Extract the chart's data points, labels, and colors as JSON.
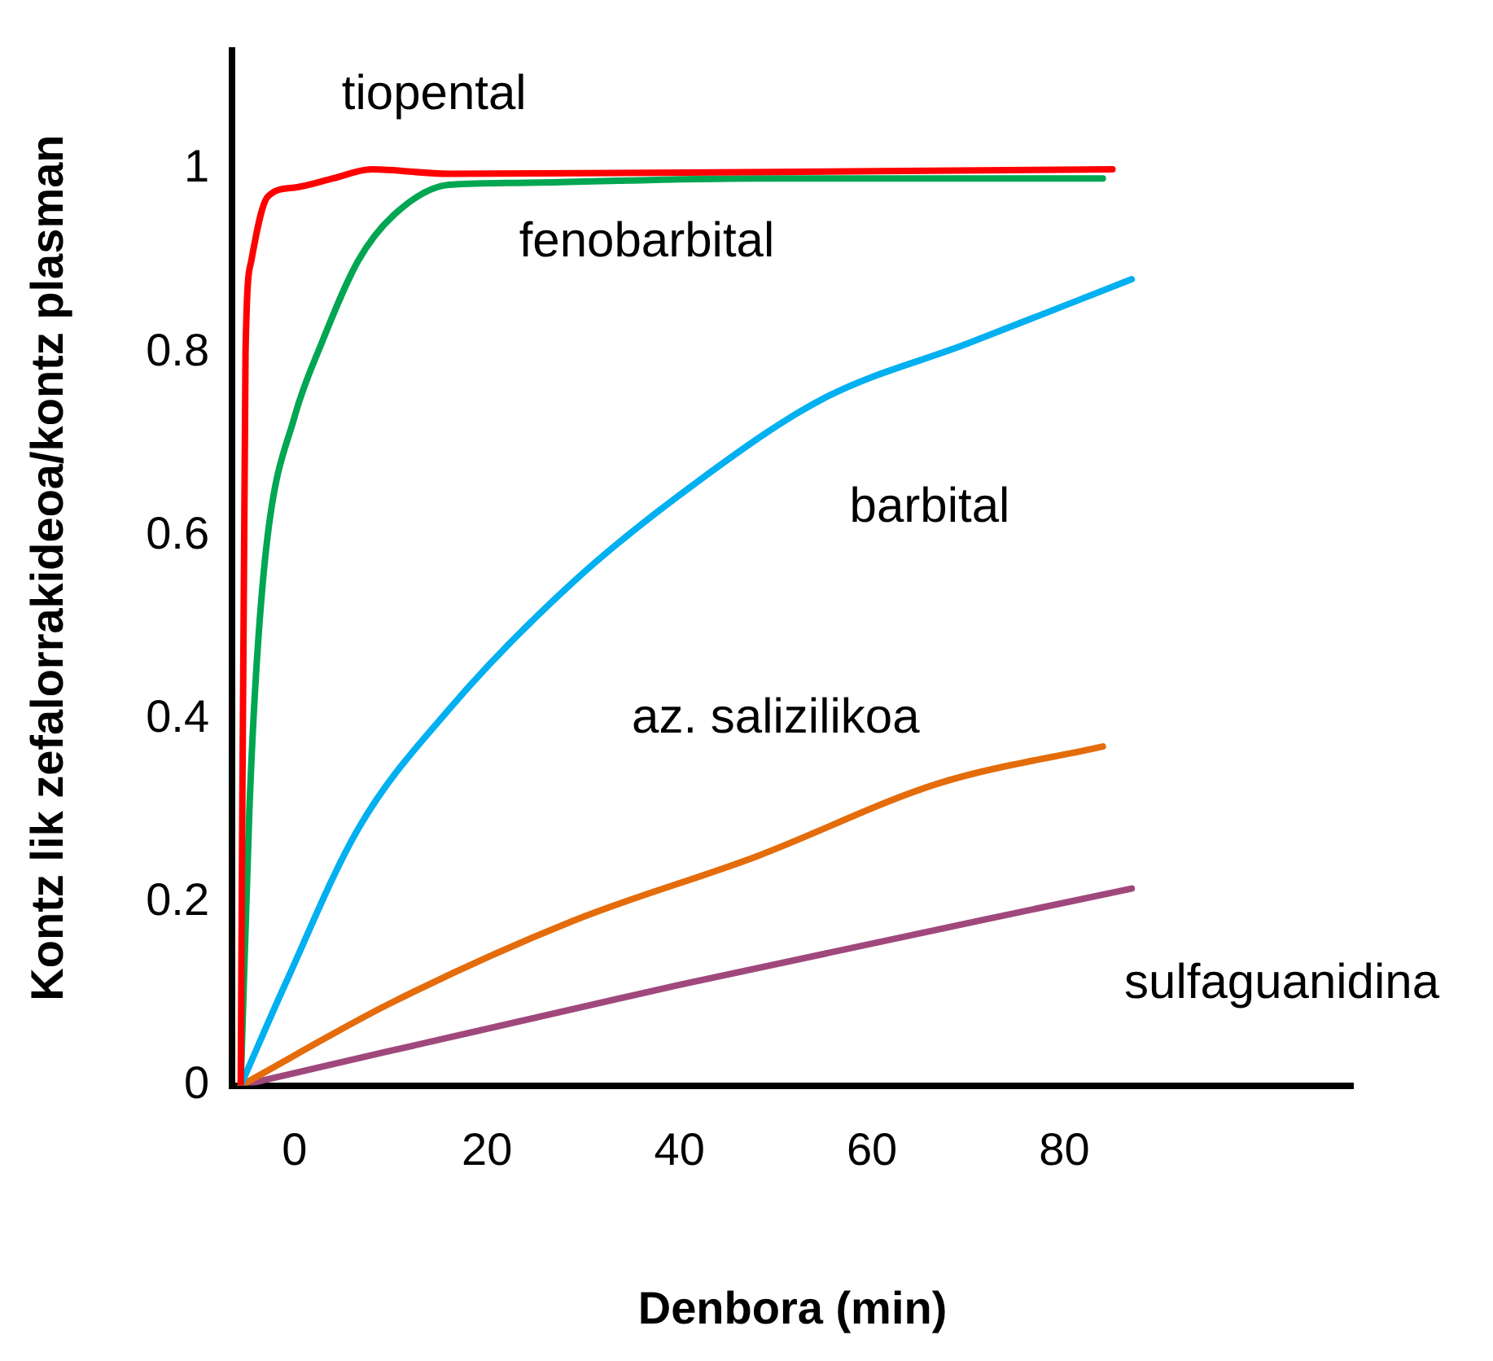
{
  "chart_data": {
    "type": "line",
    "xlabel": "Denbora (min)",
    "ylabel": "Kontz lik zefalorrakideoa/kontz plasman",
    "xlim": [
      -6.5,
      110
    ],
    "xticks": [
      0,
      20,
      40,
      60,
      80
    ],
    "ylim": [
      0,
      1.13
    ],
    "yticks": [
      0,
      0.2,
      0.4,
      0.6,
      0.8,
      1
    ],
    "grid": false,
    "legend": false,
    "marker": "none",
    "line_style": "solid",
    "series": [
      {
        "name": "tiopental",
        "color": "#ff0000",
        "x": [
          -5.6,
          -5.1,
          -4.5,
          -2.8,
          0,
          4,
          8,
          16,
          50,
          85
        ],
        "values": [
          0,
          0.8,
          0.9,
          0.97,
          0.98,
          0.99,
          1.0,
          0.995,
          0.997,
          1.0
        ]
      },
      {
        "name": "fenobarbital",
        "color": "#00a651",
        "x": [
          -5.6,
          -4.7,
          -4,
          -2.8,
          0,
          2.8,
          6.6,
          10.3,
          16,
          22,
          48,
          84
        ],
        "values": [
          0,
          0.3,
          0.45,
          0.6,
          0.73,
          0.81,
          0.9,
          0.95,
          0.983,
          0.985,
          0.99,
          0.99
        ]
      },
      {
        "name": "barbital",
        "color": "#00b0f0",
        "x": [
          -5.6,
          -1,
          6.6,
          16,
          29,
          42,
          55,
          70,
          87
        ],
        "values": [
          0,
          0.11,
          0.28,
          0.41,
          0.55,
          0.66,
          0.75,
          0.81,
          0.88
        ]
      },
      {
        "name": "az. salizilikoa",
        "color": "#e46c0a",
        "x": [
          -5.6,
          10,
          29,
          48,
          67,
          84
        ],
        "values": [
          0,
          0.09,
          0.18,
          0.25,
          0.33,
          0.37
        ]
      },
      {
        "name": "sulfaguanidina",
        "color": "#a0487c",
        "x": [
          -5.6,
          40,
          87
        ],
        "values": [
          0,
          0.11,
          0.215
        ]
      }
    ]
  }
}
